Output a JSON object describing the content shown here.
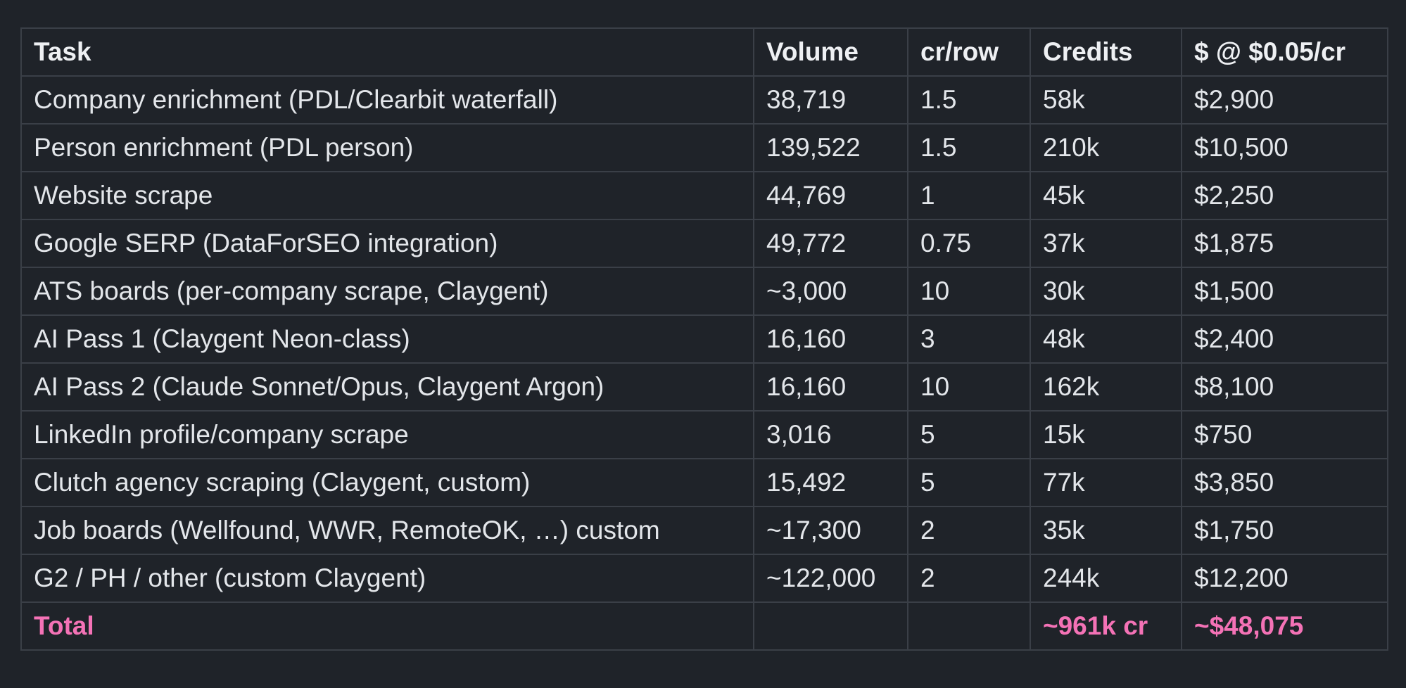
{
  "accent_color": "#f472b6",
  "headers": [
    "Task",
    "Volume",
    "cr/row",
    "Credits",
    "$ @ $0.05/cr"
  ],
  "rows": [
    [
      "Company enrichment (PDL/Clearbit waterfall)",
      "38,719",
      "1.5",
      "58k",
      "$2,900"
    ],
    [
      "Person enrichment (PDL person)",
      "139,522",
      "1.5",
      "210k",
      "$10,500"
    ],
    [
      "Website scrape",
      "44,769",
      "1",
      "45k",
      "$2,250"
    ],
    [
      "Google SERP (DataForSEO integration)",
      "49,772",
      "0.75",
      "37k",
      "$1,875"
    ],
    [
      "ATS boards (per-company scrape, Claygent)",
      "~3,000",
      "10",
      "30k",
      "$1,500"
    ],
    [
      "AI Pass 1 (Claygent Neon-class)",
      "16,160",
      "3",
      "48k",
      "$2,400"
    ],
    [
      "AI Pass 2 (Claude Sonnet/Opus, Claygent Argon)",
      "16,160",
      "10",
      "162k",
      "$8,100"
    ],
    [
      "LinkedIn profile/company scrape",
      "3,016",
      "5",
      "15k",
      "$750"
    ],
    [
      "Clutch agency scraping (Claygent, custom)",
      "15,492",
      "5",
      "77k",
      "$3,850"
    ],
    [
      "Job boards (Wellfound, WWR, RemoteOK, …) custom",
      "~17,300",
      "2",
      "35k",
      "$1,750"
    ],
    [
      "G2 / PH / other (custom Claygent)",
      "~122,000",
      "2",
      "244k",
      "$12,200"
    ]
  ],
  "total": {
    "label": "Total",
    "volume": "",
    "cr_per_row": "",
    "credits": "~961k cr",
    "cost": "~$48,075"
  }
}
